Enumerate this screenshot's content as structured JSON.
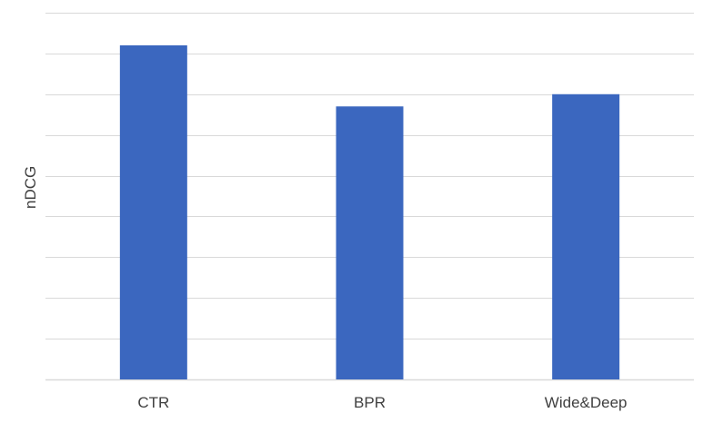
{
  "chart_data": {
    "type": "bar",
    "categories": [
      "CTR",
      "BPR",
      "Wide&Deep"
    ],
    "values": [
      0.82,
      0.67,
      0.7
    ],
    "ylabel": "nDCG",
    "xlabel": "",
    "title": "",
    "ylim": [
      0,
      0.9
    ],
    "grid": true,
    "y_tick_labels_shown": false,
    "colors": {
      "bar": "#3b67bf",
      "grid": "#d9d9d9",
      "text": "#404040"
    }
  }
}
